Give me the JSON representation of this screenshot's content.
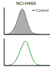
{
  "chart_data": [
    {
      "type": "area",
      "title": "NCI-H460",
      "x": [
        1,
        1.6,
        2.5,
        4,
        6.3,
        10,
        16,
        25,
        40,
        63,
        100,
        160,
        250,
        400,
        630,
        1000,
        1600,
        2500,
        4000,
        6300,
        10000
      ],
      "series": [
        {
          "name": "Control",
          "color": "#9a9a9a",
          "values": [
            0,
            1,
            3,
            8,
            18,
            35,
            60,
            85,
            95,
            80,
            50,
            25,
            10,
            4,
            2,
            1,
            0,
            0,
            0,
            0,
            0
          ]
        }
      ],
      "xlim": [
        1,
        10000
      ],
      "ylim": [
        0,
        100
      ],
      "xticks": [
        1,
        10,
        100,
        1000,
        10000
      ],
      "yticks": [
        0,
        50,
        100
      ],
      "log": "x",
      "grid": false,
      "legend": "upper right",
      "tick_labels": false
    },
    {
      "type": "line",
      "x": [
        1,
        1.6,
        2.5,
        4,
        6.3,
        10,
        16,
        25,
        40,
        63,
        100,
        160,
        250,
        400,
        630,
        1000,
        1600,
        2500,
        4000,
        6300,
        10000
      ],
      "series": [
        {
          "color": "#2e9e2e",
          "values": [
            0,
            0,
            1,
            3,
            8,
            18,
            35,
            55,
            75,
            90,
            85,
            60,
            35,
            15,
            6,
            2,
            1,
            0,
            0,
            0,
            0
          ]
        }
      ],
      "xlim": [
        1,
        10000
      ],
      "ylim": [
        0,
        100
      ],
      "xticks": [
        1,
        10,
        100,
        1000,
        10000
      ],
      "yticks": [
        0,
        50,
        100
      ],
      "log": "x",
      "grid": false,
      "tick_labels": false
    }
  ]
}
